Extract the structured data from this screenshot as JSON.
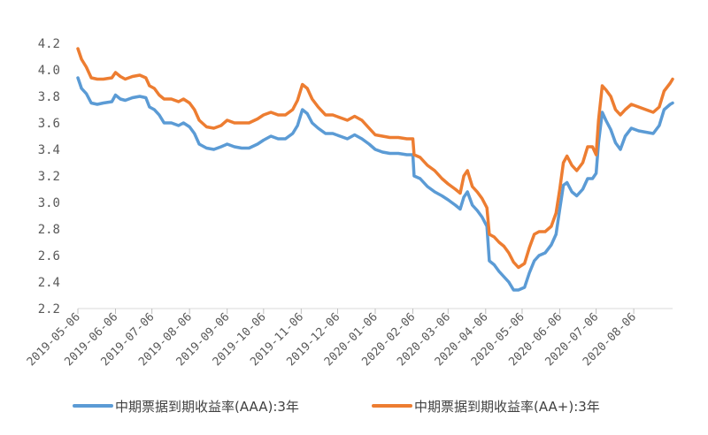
{
  "chart_data": {
    "type": "line",
    "title": "",
    "xlabel": "",
    "ylabel": "",
    "ylim": [
      2.2,
      4.2
    ],
    "yticks": [
      "4.2",
      "4.0",
      "3.8",
      "3.6",
      "3.4",
      "3.2",
      "3.0",
      "2.8",
      "2.6",
      "2.4",
      "2.2"
    ],
    "x_tick_labels": [
      "2019-05-06",
      "2019-06-06",
      "2019-07-06",
      "2019-08-06",
      "2019-09-06",
      "2019-10-06",
      "2019-11-06",
      "2019-12-06",
      "2020-01-06",
      "2020-02-06",
      "2020-03-06",
      "2020-04-06",
      "2020-05-06",
      "2020-06-06",
      "2020-07-06",
      "2020-08-06"
    ],
    "grid": false,
    "legend_position": "bottom",
    "colors": {
      "aaa": "#5b9bd5",
      "aa_plus": "#ed7d31"
    },
    "series": [
      {
        "name": "中期票据到期收益率(AAA):3年",
        "color": "#5b9bd5",
        "points": [
          [
            "2019-05-06",
            3.94
          ],
          [
            "2019-05-09",
            3.86
          ],
          [
            "2019-05-13",
            3.82
          ],
          [
            "2019-05-17",
            3.75
          ],
          [
            "2019-05-22",
            3.74
          ],
          [
            "2019-05-27",
            3.75
          ],
          [
            "2019-06-03",
            3.76
          ],
          [
            "2019-06-06",
            3.81
          ],
          [
            "2019-06-10",
            3.78
          ],
          [
            "2019-06-14",
            3.77
          ],
          [
            "2019-06-20",
            3.79
          ],
          [
            "2019-06-26",
            3.8
          ],
          [
            "2019-07-01",
            3.79
          ],
          [
            "2019-07-04",
            3.72
          ],
          [
            "2019-07-08",
            3.7
          ],
          [
            "2019-07-12",
            3.66
          ],
          [
            "2019-07-16",
            3.6
          ],
          [
            "2019-07-22",
            3.6
          ],
          [
            "2019-07-28",
            3.58
          ],
          [
            "2019-08-01",
            3.6
          ],
          [
            "2019-08-06",
            3.57
          ],
          [
            "2019-08-10",
            3.52
          ],
          [
            "2019-08-14",
            3.44
          ],
          [
            "2019-08-20",
            3.41
          ],
          [
            "2019-08-26",
            3.4
          ],
          [
            "2019-09-01",
            3.42
          ],
          [
            "2019-09-06",
            3.44
          ],
          [
            "2019-09-12",
            3.42
          ],
          [
            "2019-09-18",
            3.41
          ],
          [
            "2019-09-24",
            3.41
          ],
          [
            "2019-10-01",
            3.44
          ],
          [
            "2019-10-06",
            3.47
          ],
          [
            "2019-10-12",
            3.5
          ],
          [
            "2019-10-18",
            3.48
          ],
          [
            "2019-10-24",
            3.48
          ],
          [
            "2019-10-30",
            3.52
          ],
          [
            "2019-11-03",
            3.58
          ],
          [
            "2019-11-07",
            3.7
          ],
          [
            "2019-11-11",
            3.67
          ],
          [
            "2019-11-15",
            3.6
          ],
          [
            "2019-11-20",
            3.56
          ],
          [
            "2019-11-26",
            3.52
          ],
          [
            "2019-12-02",
            3.52
          ],
          [
            "2019-12-08",
            3.5
          ],
          [
            "2019-12-14",
            3.48
          ],
          [
            "2019-12-20",
            3.51
          ],
          [
            "2019-12-26",
            3.48
          ],
          [
            "2020-01-01",
            3.44
          ],
          [
            "2020-01-06",
            3.4
          ],
          [
            "2020-01-12",
            3.38
          ],
          [
            "2020-01-18",
            3.37
          ],
          [
            "2020-01-25",
            3.37
          ],
          [
            "2020-02-01",
            3.36
          ],
          [
            "2020-02-06",
            3.36
          ],
          [
            "2020-02-07",
            3.2
          ],
          [
            "2020-02-12",
            3.18
          ],
          [
            "2020-02-18",
            3.12
          ],
          [
            "2020-02-24",
            3.08
          ],
          [
            "2020-03-01",
            3.05
          ],
          [
            "2020-03-06",
            3.02
          ],
          [
            "2020-03-12",
            2.98
          ],
          [
            "2020-03-16",
            2.95
          ],
          [
            "2020-03-19",
            3.04
          ],
          [
            "2020-03-22",
            3.08
          ],
          [
            "2020-03-26",
            2.98
          ],
          [
            "2020-03-30",
            2.94
          ],
          [
            "2020-04-03",
            2.89
          ],
          [
            "2020-04-07",
            2.82
          ],
          [
            "2020-04-09",
            2.56
          ],
          [
            "2020-04-13",
            2.53
          ],
          [
            "2020-04-17",
            2.48
          ],
          [
            "2020-04-21",
            2.44
          ],
          [
            "2020-04-25",
            2.4
          ],
          [
            "2020-04-29",
            2.34
          ],
          [
            "2020-05-03",
            2.34
          ],
          [
            "2020-05-08",
            2.36
          ],
          [
            "2020-05-12",
            2.47
          ],
          [
            "2020-05-16",
            2.56
          ],
          [
            "2020-05-20",
            2.6
          ],
          [
            "2020-05-25",
            2.62
          ],
          [
            "2020-05-30",
            2.68
          ],
          [
            "2020-06-03",
            2.76
          ],
          [
            "2020-06-06",
            2.95
          ],
          [
            "2020-06-09",
            3.13
          ],
          [
            "2020-06-12",
            3.15
          ],
          [
            "2020-06-16",
            3.08
          ],
          [
            "2020-06-20",
            3.05
          ],
          [
            "2020-06-25",
            3.1
          ],
          [
            "2020-06-29",
            3.18
          ],
          [
            "2020-07-03",
            3.18
          ],
          [
            "2020-07-06",
            3.22
          ],
          [
            "2020-07-08",
            3.45
          ],
          [
            "2020-07-11",
            3.68
          ],
          [
            "2020-07-14",
            3.62
          ],
          [
            "2020-07-18",
            3.55
          ],
          [
            "2020-07-22",
            3.45
          ],
          [
            "2020-07-26",
            3.4
          ],
          [
            "2020-07-30",
            3.5
          ],
          [
            "2020-08-04",
            3.56
          ],
          [
            "2020-08-10",
            3.54
          ],
          [
            "2020-08-16",
            3.53
          ],
          [
            "2020-08-22",
            3.52
          ],
          [
            "2020-08-27",
            3.58
          ],
          [
            "2020-08-31",
            3.7
          ],
          [
            "2020-09-05",
            3.74
          ],
          [
            "2020-09-07",
            3.75
          ]
        ]
      },
      {
        "name": "中期票据到期收益率(AA+):3年",
        "color": "#ed7d31",
        "points": [
          [
            "2019-05-06",
            4.16
          ],
          [
            "2019-05-09",
            4.08
          ],
          [
            "2019-05-13",
            4.02
          ],
          [
            "2019-05-17",
            3.94
          ],
          [
            "2019-05-22",
            3.93
          ],
          [
            "2019-05-27",
            3.93
          ],
          [
            "2019-06-03",
            3.94
          ],
          [
            "2019-06-06",
            3.98
          ],
          [
            "2019-06-10",
            3.95
          ],
          [
            "2019-06-14",
            3.93
          ],
          [
            "2019-06-20",
            3.95
          ],
          [
            "2019-06-26",
            3.96
          ],
          [
            "2019-07-01",
            3.94
          ],
          [
            "2019-07-04",
            3.88
          ],
          [
            "2019-07-08",
            3.86
          ],
          [
            "2019-07-12",
            3.81
          ],
          [
            "2019-07-16",
            3.78
          ],
          [
            "2019-07-22",
            3.78
          ],
          [
            "2019-07-28",
            3.76
          ],
          [
            "2019-08-01",
            3.78
          ],
          [
            "2019-08-06",
            3.75
          ],
          [
            "2019-08-10",
            3.7
          ],
          [
            "2019-08-14",
            3.62
          ],
          [
            "2019-08-20",
            3.57
          ],
          [
            "2019-08-26",
            3.56
          ],
          [
            "2019-09-01",
            3.58
          ],
          [
            "2019-09-06",
            3.62
          ],
          [
            "2019-09-12",
            3.6
          ],
          [
            "2019-09-18",
            3.6
          ],
          [
            "2019-09-24",
            3.6
          ],
          [
            "2019-10-01",
            3.63
          ],
          [
            "2019-10-06",
            3.66
          ],
          [
            "2019-10-12",
            3.68
          ],
          [
            "2019-10-18",
            3.66
          ],
          [
            "2019-10-24",
            3.66
          ],
          [
            "2019-10-30",
            3.7
          ],
          [
            "2019-11-03",
            3.77
          ],
          [
            "2019-11-07",
            3.89
          ],
          [
            "2019-11-11",
            3.86
          ],
          [
            "2019-11-15",
            3.78
          ],
          [
            "2019-11-20",
            3.72
          ],
          [
            "2019-11-26",
            3.66
          ],
          [
            "2019-12-02",
            3.66
          ],
          [
            "2019-12-08",
            3.64
          ],
          [
            "2019-12-14",
            3.62
          ],
          [
            "2019-12-20",
            3.65
          ],
          [
            "2019-12-26",
            3.62
          ],
          [
            "2020-01-01",
            3.56
          ],
          [
            "2020-01-06",
            3.51
          ],
          [
            "2020-01-12",
            3.5
          ],
          [
            "2020-01-18",
            3.49
          ],
          [
            "2020-01-25",
            3.49
          ],
          [
            "2020-02-01",
            3.48
          ],
          [
            "2020-02-06",
            3.48
          ],
          [
            "2020-02-07",
            3.36
          ],
          [
            "2020-02-12",
            3.34
          ],
          [
            "2020-02-18",
            3.28
          ],
          [
            "2020-02-24",
            3.24
          ],
          [
            "2020-03-01",
            3.18
          ],
          [
            "2020-03-06",
            3.14
          ],
          [
            "2020-03-12",
            3.1
          ],
          [
            "2020-03-16",
            3.07
          ],
          [
            "2020-03-19",
            3.2
          ],
          [
            "2020-03-22",
            3.24
          ],
          [
            "2020-03-26",
            3.12
          ],
          [
            "2020-03-30",
            3.08
          ],
          [
            "2020-04-03",
            3.03
          ],
          [
            "2020-04-07",
            2.96
          ],
          [
            "2020-04-09",
            2.76
          ],
          [
            "2020-04-13",
            2.74
          ],
          [
            "2020-04-17",
            2.7
          ],
          [
            "2020-04-21",
            2.67
          ],
          [
            "2020-04-25",
            2.62
          ],
          [
            "2020-04-29",
            2.55
          ],
          [
            "2020-05-03",
            2.51
          ],
          [
            "2020-05-08",
            2.54
          ],
          [
            "2020-05-12",
            2.66
          ],
          [
            "2020-05-16",
            2.76
          ],
          [
            "2020-05-20",
            2.78
          ],
          [
            "2020-05-25",
            2.78
          ],
          [
            "2020-05-30",
            2.82
          ],
          [
            "2020-06-03",
            2.92
          ],
          [
            "2020-06-06",
            3.1
          ],
          [
            "2020-06-09",
            3.3
          ],
          [
            "2020-06-12",
            3.35
          ],
          [
            "2020-06-16",
            3.28
          ],
          [
            "2020-06-20",
            3.24
          ],
          [
            "2020-06-25",
            3.3
          ],
          [
            "2020-06-29",
            3.42
          ],
          [
            "2020-07-03",
            3.42
          ],
          [
            "2020-07-06",
            3.36
          ],
          [
            "2020-07-08",
            3.62
          ],
          [
            "2020-07-11",
            3.88
          ],
          [
            "2020-07-14",
            3.85
          ],
          [
            "2020-07-18",
            3.8
          ],
          [
            "2020-07-22",
            3.7
          ],
          [
            "2020-07-26",
            3.66
          ],
          [
            "2020-07-30",
            3.7
          ],
          [
            "2020-08-04",
            3.74
          ],
          [
            "2020-08-10",
            3.72
          ],
          [
            "2020-08-16",
            3.7
          ],
          [
            "2020-08-22",
            3.68
          ],
          [
            "2020-08-27",
            3.72
          ],
          [
            "2020-08-31",
            3.84
          ],
          [
            "2020-09-05",
            3.9
          ],
          [
            "2020-09-07",
            3.93
          ]
        ]
      }
    ]
  }
}
